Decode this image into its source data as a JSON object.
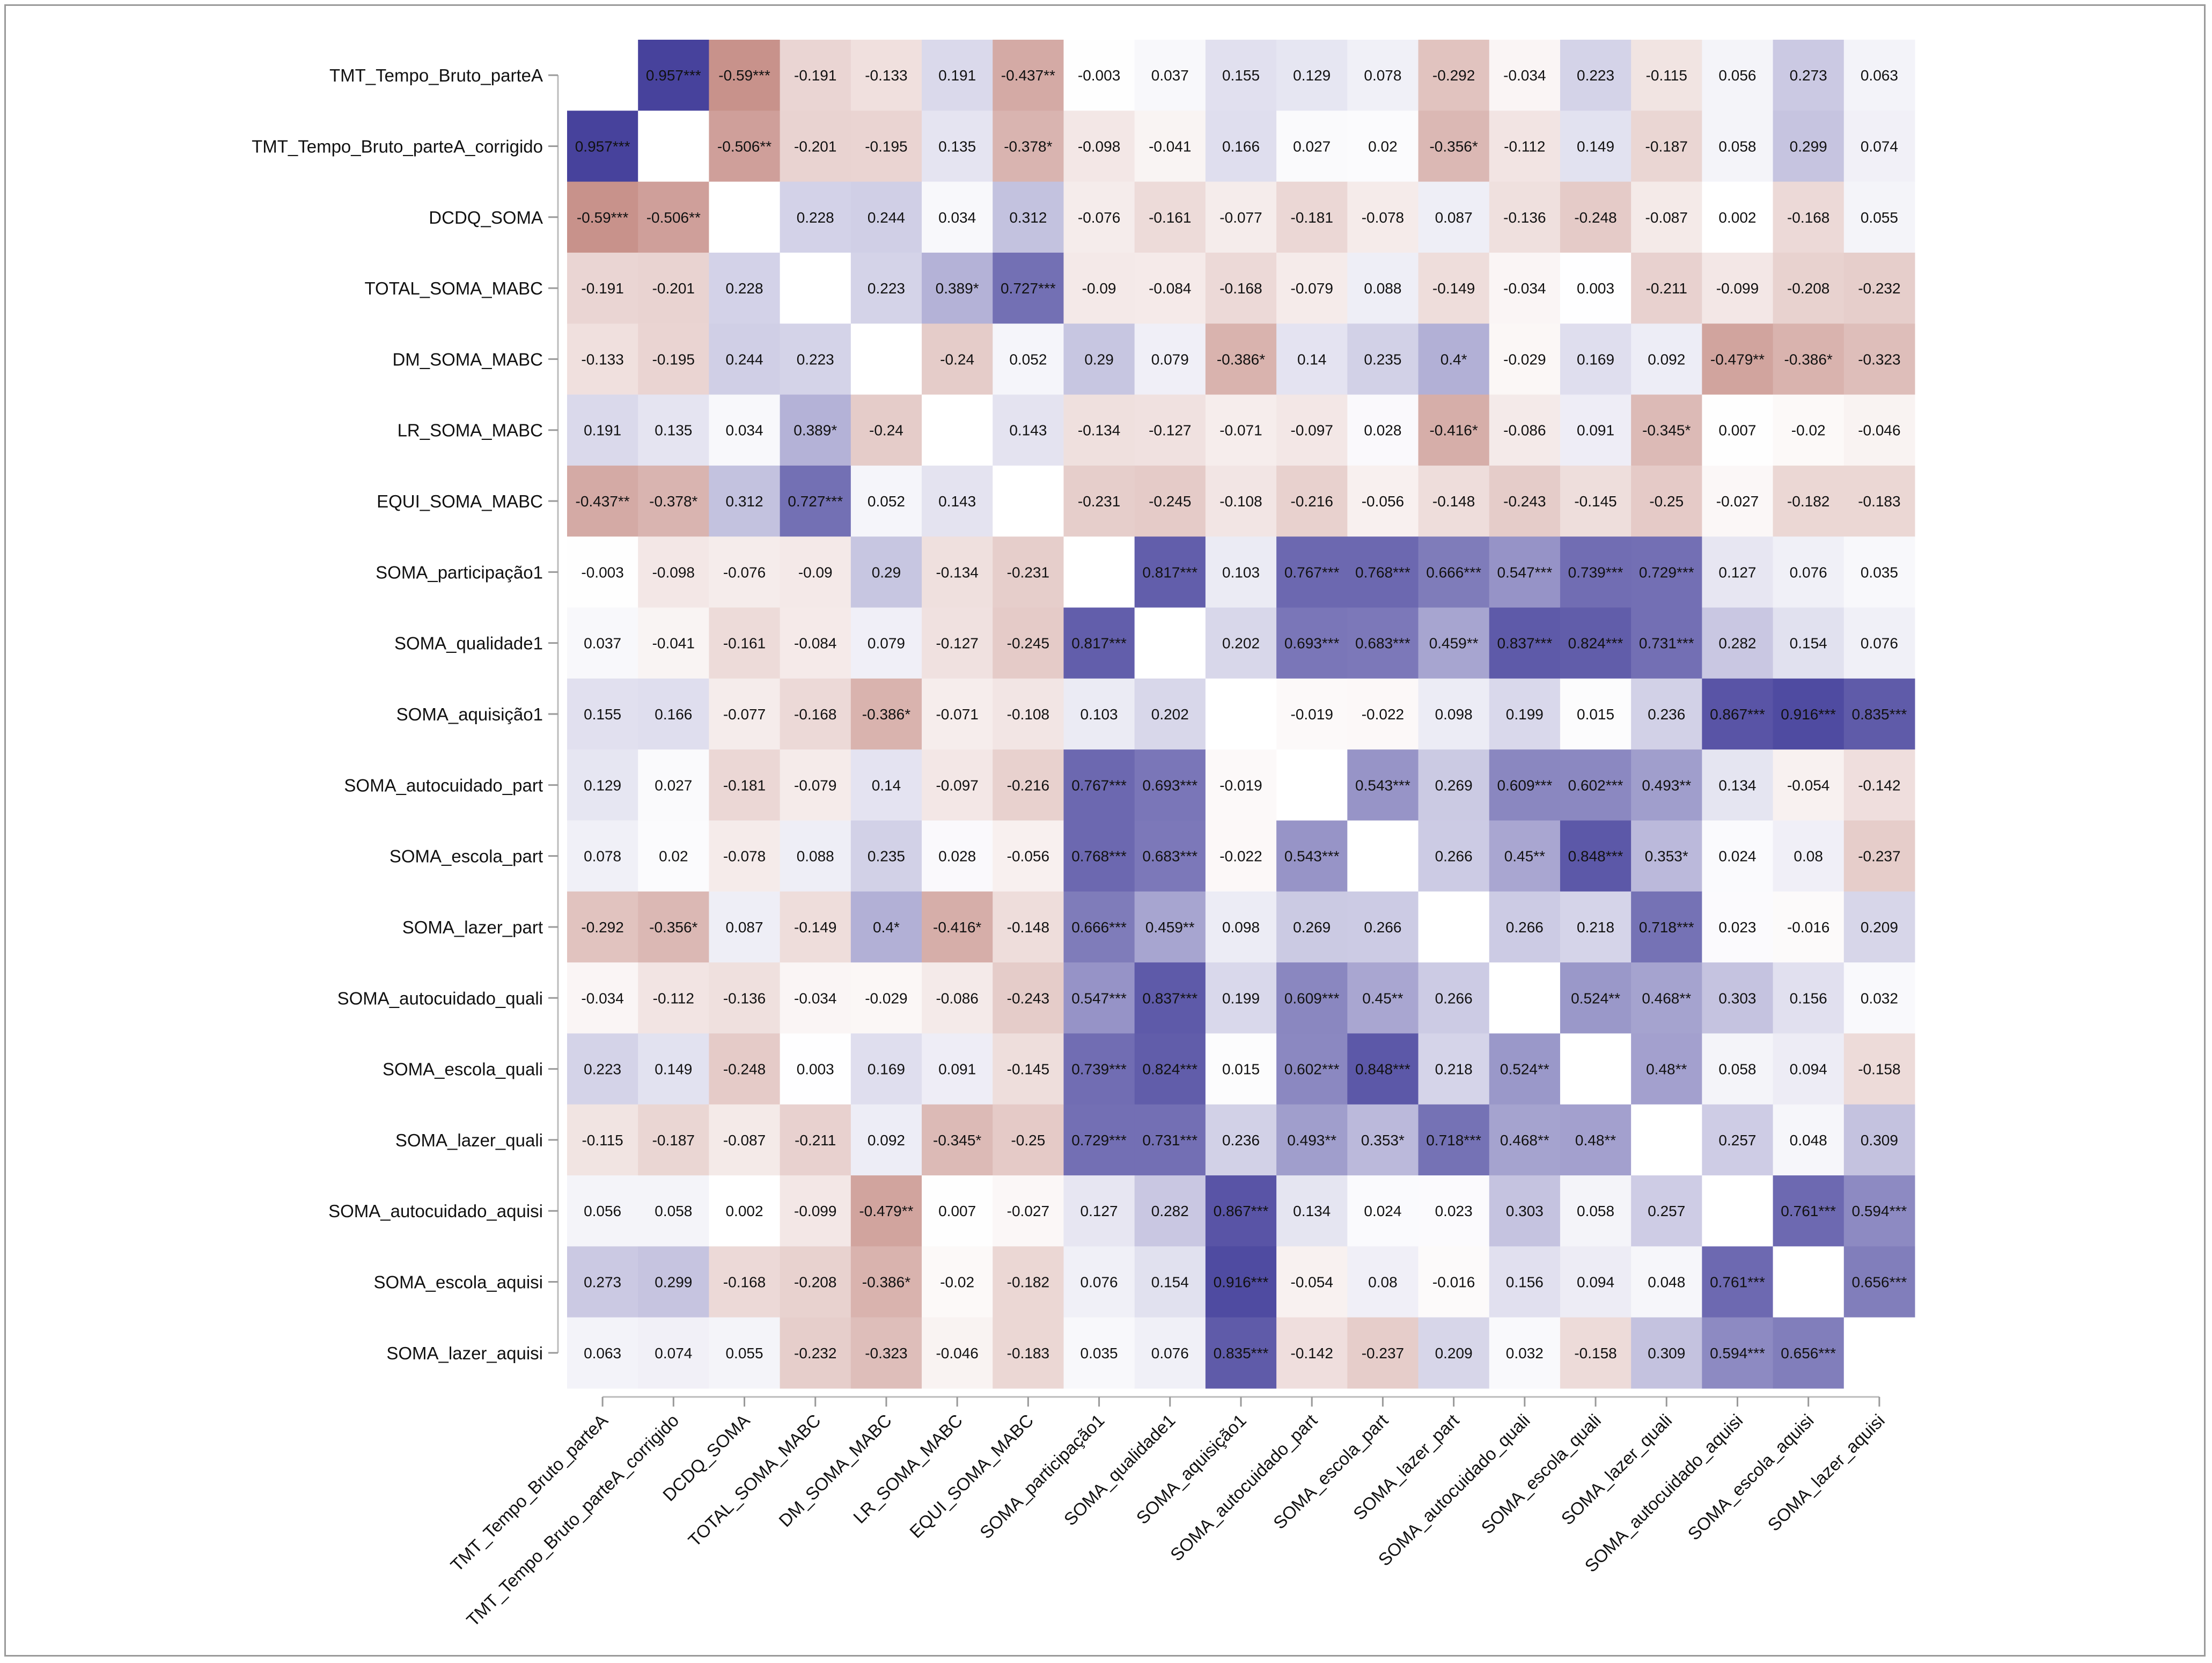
{
  "chart_data": {
    "type": "heatmap",
    "title": "",
    "variables": [
      "TMT_Tempo_Bruto_parteA",
      "TMT_Tempo_Bruto_parteA_corrigido",
      "DCDQ_SOMA",
      "TOTAL_SOMA_MABC",
      "DM_SOMA_MABC",
      "LR_SOMA_MABC",
      "EQUI_SOMA_MABC",
      "SOMA_participação1",
      "SOMA_qualidade1",
      "SOMA_aquisição1",
      "SOMA_autocuidado_part",
      "SOMA_escola_part",
      "SOMA_lazer_part",
      "SOMA_autocuidado_quali",
      "SOMA_escola_quali",
      "SOMA_lazer_quali",
      "SOMA_autocuidado_aquisi",
      "SOMA_escola_aquisi",
      "SOMA_lazer_aquisi"
    ],
    "value_range": [
      -1,
      1
    ],
    "colors": {
      "positive": "#3f3a98",
      "negative": "#a9544a",
      "zero": "#ffffff",
      "diagonal": "#ffffff"
    },
    "cells": [
      [
        "",
        "0.957***",
        "-0.59***",
        "-0.191",
        "-0.133",
        "0.191",
        "-0.437**",
        "-0.003",
        "0.037",
        "0.155",
        "0.129",
        "0.078",
        "-0.292",
        "-0.034",
        "0.223",
        "-0.115",
        "0.056",
        "0.273",
        "0.063"
      ],
      [
        "0.957***",
        "",
        "-0.506**",
        "-0.201",
        "-0.195",
        "0.135",
        "-0.378*",
        "-0.098",
        "-0.041",
        "0.166",
        "0.027",
        "0.02",
        "-0.356*",
        "-0.112",
        "0.149",
        "-0.187",
        "0.058",
        "0.299",
        "0.074"
      ],
      [
        "-0.59***",
        "-0.506**",
        "",
        "0.228",
        "0.244",
        "0.034",
        "0.312",
        "-0.076",
        "-0.161",
        "-0.077",
        "-0.181",
        "-0.078",
        "0.087",
        "-0.136",
        "-0.248",
        "-0.087",
        "0.002",
        "-0.168",
        "0.055"
      ],
      [
        "-0.191",
        "-0.201",
        "0.228",
        "",
        "0.223",
        "0.389*",
        "0.727***",
        "-0.09",
        "-0.084",
        "-0.168",
        "-0.079",
        "0.088",
        "-0.149",
        "-0.034",
        "0.003",
        "-0.211",
        "-0.099",
        "-0.208",
        "-0.232"
      ],
      [
        "-0.133",
        "-0.195",
        "0.244",
        "0.223",
        "",
        "-0.24",
        "0.052",
        "0.29",
        "0.079",
        "-0.386*",
        "0.14",
        "0.235",
        "0.4*",
        "-0.029",
        "0.169",
        "0.092",
        "-0.479**",
        "-0.386*",
        "-0.323"
      ],
      [
        "0.191",
        "0.135",
        "0.034",
        "0.389*",
        "-0.24",
        "",
        "0.143",
        "-0.134",
        "-0.127",
        "-0.071",
        "-0.097",
        "0.028",
        "-0.416*",
        "-0.086",
        "0.091",
        "-0.345*",
        "0.007",
        "-0.02",
        "-0.046"
      ],
      [
        "-0.437**",
        "-0.378*",
        "0.312",
        "0.727***",
        "0.052",
        "0.143",
        "",
        "-0.231",
        "-0.245",
        "-0.108",
        "-0.216",
        "-0.056",
        "-0.148",
        "-0.243",
        "-0.145",
        "-0.25",
        "-0.027",
        "-0.182",
        "-0.183"
      ],
      [
        "-0.003",
        "-0.098",
        "-0.076",
        "-0.09",
        "0.29",
        "-0.134",
        "-0.231",
        "",
        "0.817***",
        "0.103",
        "0.767***",
        "0.768***",
        "0.666***",
        "0.547***",
        "0.739***",
        "0.729***",
        "0.127",
        "0.076",
        "0.035"
      ],
      [
        "0.037",
        "-0.041",
        "-0.161",
        "-0.084",
        "0.079",
        "-0.127",
        "-0.245",
        "0.817***",
        "",
        "0.202",
        "0.693***",
        "0.683***",
        "0.459**",
        "0.837***",
        "0.824***",
        "0.731***",
        "0.282",
        "0.154",
        "0.076"
      ],
      [
        "0.155",
        "0.166",
        "-0.077",
        "-0.168",
        "-0.386*",
        "-0.071",
        "-0.108",
        "0.103",
        "0.202",
        "",
        "-0.019",
        "-0.022",
        "0.098",
        "0.199",
        "0.015",
        "0.236",
        "0.867***",
        "0.916***",
        "0.835***"
      ],
      [
        "0.129",
        "0.027",
        "-0.181",
        "-0.079",
        "0.14",
        "-0.097",
        "-0.216",
        "0.767***",
        "0.693***",
        "-0.019",
        "",
        "0.543***",
        "0.269",
        "0.609***",
        "0.602***",
        "0.493**",
        "0.134",
        "-0.054",
        "-0.142"
      ],
      [
        "0.078",
        "0.02",
        "-0.078",
        "0.088",
        "0.235",
        "0.028",
        "-0.056",
        "0.768***",
        "0.683***",
        "-0.022",
        "0.543***",
        "",
        "0.266",
        "0.45**",
        "0.848***",
        "0.353*",
        "0.024",
        "0.08",
        "-0.237"
      ],
      [
        "-0.292",
        "-0.356*",
        "0.087",
        "-0.149",
        "0.4*",
        "-0.416*",
        "-0.148",
        "0.666***",
        "0.459**",
        "0.098",
        "0.269",
        "0.266",
        "",
        "0.266",
        "0.218",
        "0.718***",
        "0.023",
        "-0.016",
        "0.209"
      ],
      [
        "-0.034",
        "-0.112",
        "-0.136",
        "-0.034",
        "-0.029",
        "-0.086",
        "-0.243",
        "0.547***",
        "0.837***",
        "0.199",
        "0.609***",
        "0.45**",
        "0.266",
        "",
        "0.524**",
        "0.468**",
        "0.303",
        "0.156",
        "0.032"
      ],
      [
        "0.223",
        "0.149",
        "-0.248",
        "0.003",
        "0.169",
        "0.091",
        "-0.145",
        "0.739***",
        "0.824***",
        "0.015",
        "0.602***",
        "0.848***",
        "0.218",
        "0.524**",
        "",
        "0.48**",
        "0.058",
        "0.094",
        "-0.158"
      ],
      [
        "-0.115",
        "-0.187",
        "-0.087",
        "-0.211",
        "0.092",
        "-0.345*",
        "-0.25",
        "0.729***",
        "0.731***",
        "0.236",
        "0.493**",
        "0.353*",
        "0.718***",
        "0.468**",
        "0.48**",
        "",
        "0.257",
        "0.048",
        "0.309"
      ],
      [
        "0.056",
        "0.058",
        "0.002",
        "-0.099",
        "-0.479**",
        "0.007",
        "-0.027",
        "0.127",
        "0.282",
        "0.867***",
        "0.134",
        "0.024",
        "0.023",
        "0.303",
        "0.058",
        "0.257",
        "",
        "0.761***",
        "0.594***"
      ],
      [
        "0.273",
        "0.299",
        "-0.168",
        "-0.208",
        "-0.386*",
        "-0.02",
        "-0.182",
        "0.076",
        "0.154",
        "0.916***",
        "-0.054",
        "0.08",
        "-0.016",
        "0.156",
        "0.094",
        "0.048",
        "0.761***",
        "",
        "0.656***"
      ],
      [
        "0.063",
        "0.074",
        "0.055",
        "-0.232",
        "-0.323",
        "-0.046",
        "-0.183",
        "0.035",
        "0.076",
        "0.835***",
        "-0.142",
        "-0.237",
        "0.209",
        "0.032",
        "-0.158",
        "0.309",
        "0.594***",
        "0.656***",
        ""
      ]
    ]
  }
}
